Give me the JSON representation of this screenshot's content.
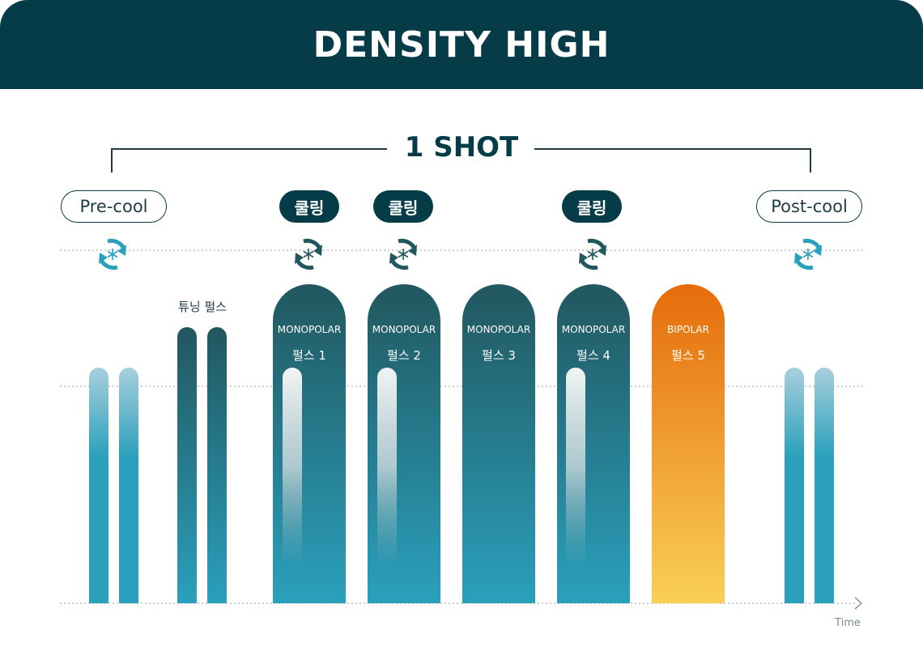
{
  "header": {
    "title": "DENSITY HIGH"
  },
  "shot": {
    "title": "1 SHOT"
  },
  "phases": {
    "pre": "Pre-cool",
    "post": "Post-cool",
    "cooling_1": "쿨링",
    "cooling_2": "쿨링",
    "cooling_3": "쿨링"
  },
  "tuning": {
    "label": "튜닝 펄스"
  },
  "pulses": [
    {
      "type": "MONOPOLAR",
      "label": "펄스 1"
    },
    {
      "type": "MONOPOLAR",
      "label": "펄스 2"
    },
    {
      "type": "MONOPOLAR",
      "label": "펄스 3"
    },
    {
      "type": "MONOPOLAR",
      "label": "펄스 4"
    },
    {
      "type": "BIPOLAR",
      "label": "펄스 5"
    }
  ],
  "axis": {
    "x_label": "Time"
  },
  "icons": {
    "cooling_cycle": "snowflake-cycle-icon",
    "time_arrow": "chevron-right-icon"
  },
  "colors": {
    "header": "#053c47",
    "monopolar_top": "#22575f",
    "monopolar_bottom": "#2aa0bc",
    "bipolar_top": "#e56c0b",
    "bipolar_bottom": "#f9d054",
    "cooling_light": "#2aa0bc"
  }
}
